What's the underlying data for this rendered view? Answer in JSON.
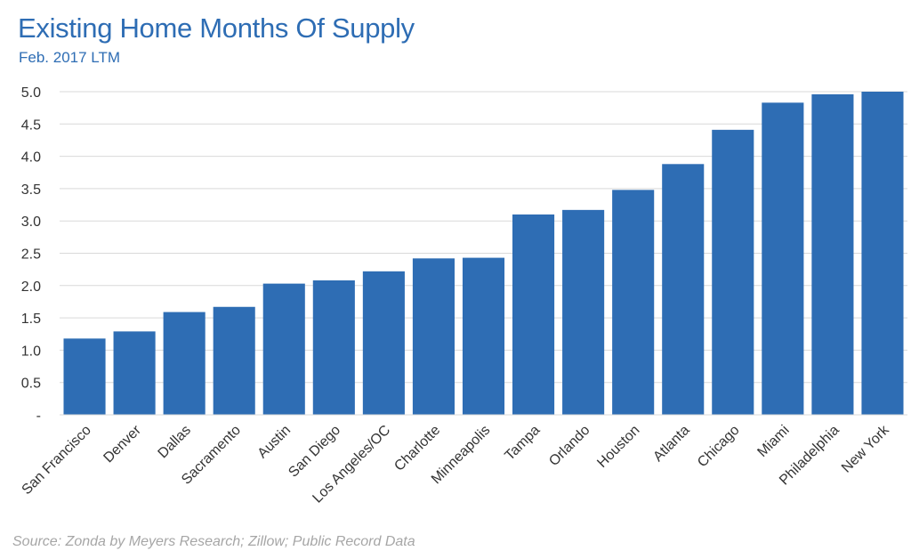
{
  "chart_data": {
    "type": "bar",
    "title": "Existing Home Months Of Supply",
    "subtitle": "Feb. 2017 LTM",
    "source": "Source: Zonda by Meyers Research; Zillow; Public Record Data",
    "xlabel": "",
    "ylabel": "",
    "ylim": [
      0,
      5
    ],
    "yticks": [
      0,
      0.5,
      1,
      1.5,
      2,
      2.5,
      3,
      3.5,
      4,
      4.5,
      5
    ],
    "ytick_labels": [
      "-",
      "0.5",
      "1.0",
      "1.5",
      "2.0",
      "2.5",
      "3.0",
      "3.5",
      "4.0",
      "4.5",
      "5.0"
    ],
    "grid": true,
    "legend": "none",
    "bar_color": "#2e6db4",
    "categories": [
      "San Francisco",
      "Denver",
      "Dallas",
      "Sacramento",
      "Austin",
      "San Diego",
      "Los Angeles/OC",
      "Charlotte",
      "Minneapolis",
      "Tampa",
      "Orlando",
      "Houston",
      "Atlanta",
      "Chicago",
      "Miami",
      "Philadelphia",
      "New York"
    ],
    "values": [
      1.18,
      1.29,
      1.59,
      1.67,
      2.03,
      2.08,
      2.22,
      2.42,
      2.43,
      3.1,
      3.17,
      3.48,
      3.88,
      4.41,
      4.83,
      4.96,
      5.0
    ]
  }
}
